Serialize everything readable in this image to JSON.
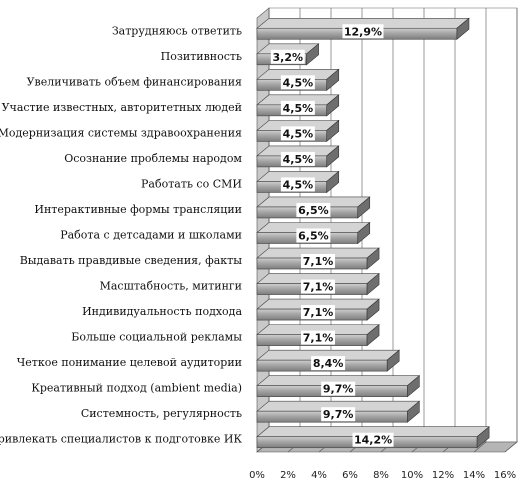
{
  "chart_data": {
    "type": "bar",
    "orientation": "horizontal",
    "style": "3d",
    "categories": [
      "Затрудняюсь ответить",
      "Позитивность",
      "Увеличивать объем финансирования",
      "Участие известных, авторитетных людей",
      "Модернизация системы здравоохранения",
      "Осознание проблемы народом",
      "Работать со СМИ",
      "Интерактивные формы трансляции",
      "Работа с детсадами и школами",
      "Выдавать правдивые сведения, факты",
      "Масштабность, митинги",
      "Индивидуальность подхода",
      "Больше социальной рекламы",
      "Четкое понимание целевой аудитории",
      "Креативный подход (ambient media)",
      "Системность, регулярность",
      "Привлекать специалистов к подготовке ИК"
    ],
    "values": [
      12.9,
      3.2,
      4.5,
      4.5,
      4.5,
      4.5,
      4.5,
      6.5,
      6.5,
      7.1,
      7.1,
      7.1,
      7.1,
      8.4,
      9.7,
      9.7,
      14.2
    ],
    "value_labels": [
      "12,9%",
      "3,2%",
      "4,5%",
      "4,5%",
      "4,5%",
      "4,5%",
      "4,5%",
      "6,5%",
      "6,5%",
      "7,1%",
      "7,1%",
      "7,1%",
      "7,1%",
      "8,4%",
      "9,7%",
      "9,7%",
      "14,2%"
    ],
    "xlim": [
      0,
      16
    ],
    "x_ticks": [
      "0%",
      "2%",
      "4%",
      "6%",
      "8%",
      "10%",
      "12%",
      "14%",
      "16%"
    ],
    "grid": true,
    "legend": "none",
    "colors": {
      "bar_front": "#a8a8a8",
      "bar_top": "#d4d4d4",
      "bar_end": "#6e6e6e",
      "wall": "#c9c9c9",
      "floor": "#b5b5b5",
      "grid": "#555555"
    }
  }
}
